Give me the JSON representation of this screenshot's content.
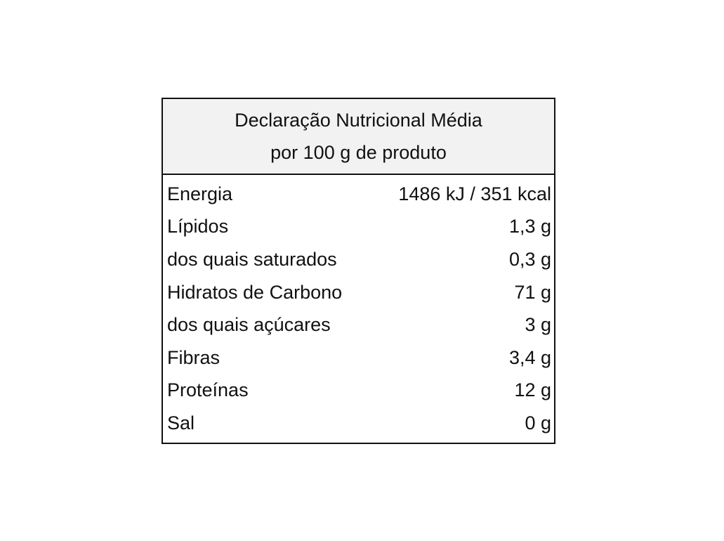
{
  "table": {
    "header": {
      "line1": "Declaração Nutricional  Média",
      "line2": "por 100 g de produto"
    },
    "rows": [
      {
        "label": "Energia",
        "value": "1486 kJ / 351 kcal"
      },
      {
        "label": "Lípidos",
        "value": "1,3 g"
      },
      {
        "label": "dos quais saturados",
        "value": "0,3 g"
      },
      {
        "label": "Hidratos de Carbono",
        "value": "71 g"
      },
      {
        "label": "dos quais açúcares",
        "value": "3 g"
      },
      {
        "label": "Fibras",
        "value": "3,4 g"
      },
      {
        "label": "Proteínas",
        "value": "12 g"
      },
      {
        "label": "Sal",
        "value": "0 g"
      }
    ]
  },
  "colors": {
    "header_background": "#f2f2f2",
    "border": "#111111",
    "text": "#111111"
  }
}
